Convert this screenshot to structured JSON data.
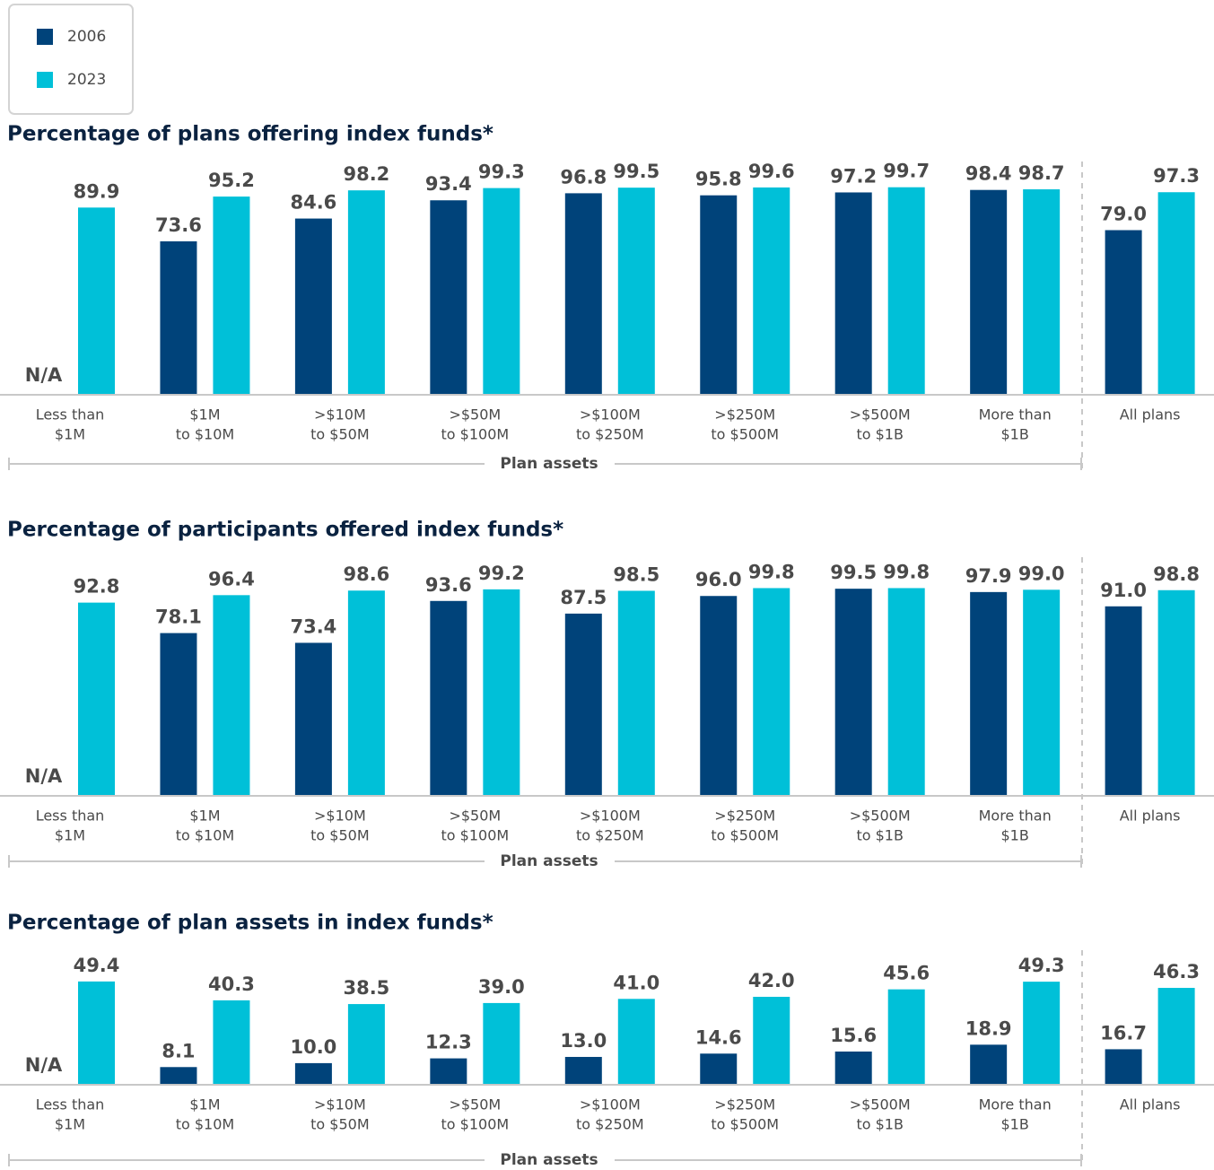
{
  "chart_data": [
    {
      "type": "bar",
      "title": "Percentage of plans offering index funds*",
      "axis_label": "Plan assets",
      "categories": [
        [
          "Less than",
          "$1M"
        ],
        [
          "$1M",
          "to $10M"
        ],
        [
          ">$10M",
          "to $50M"
        ],
        [
          ">$50M",
          "to $100M"
        ],
        [
          ">$100M",
          "to $250M"
        ],
        [
          ">$250M",
          "to $500M"
        ],
        [
          ">$500M",
          "to $1B"
        ],
        [
          "More than",
          "$1B"
        ],
        [
          "All plans"
        ]
      ],
      "ylim": [
        0,
        100
      ],
      "series": [
        {
          "name": "2006",
          "color": "#00437a",
          "values": [
            null,
            73.6,
            84.6,
            93.4,
            96.8,
            95.8,
            97.2,
            98.4,
            79.0
          ],
          "value_labels": [
            "N/A",
            "73.6",
            "84.6",
            "93.4",
            "96.8",
            "95.8",
            "97.2",
            "98.4",
            "79.0"
          ]
        },
        {
          "name": "2023",
          "color": "#00c0d8",
          "values": [
            89.9,
            95.2,
            98.2,
            99.3,
            99.5,
            99.6,
            99.7,
            98.7,
            97.3
          ],
          "value_labels": [
            "89.9",
            "95.2",
            "98.2",
            "99.3",
            "99.5",
            "99.6",
            "99.7",
            "98.7",
            "97.3"
          ]
        }
      ]
    },
    {
      "type": "bar",
      "title": "Percentage of participants offered index funds*",
      "axis_label": "Plan assets",
      "categories": [
        [
          "Less than",
          "$1M"
        ],
        [
          "$1M",
          "to $10M"
        ],
        [
          ">$10M",
          "to $50M"
        ],
        [
          ">$50M",
          "to $100M"
        ],
        [
          ">$100M",
          "to $250M"
        ],
        [
          ">$250M",
          "to $500M"
        ],
        [
          ">$500M",
          "to $1B"
        ],
        [
          "More than",
          "$1B"
        ],
        [
          "All plans"
        ]
      ],
      "ylim": [
        0,
        100
      ],
      "series": [
        {
          "color": "#00437a",
          "values": [
            null,
            78.1,
            73.4,
            93.6,
            87.5,
            96.0,
            99.5,
            97.9,
            91.0
          ],
          "value_labels": [
            "N/A",
            "78.1",
            "73.4",
            "93.6",
            "87.5",
            "96.0",
            "99.5",
            "97.9",
            "91.0"
          ]
        },
        {
          "color": "#00c0d8",
          "values": [
            92.8,
            96.4,
            98.6,
            99.2,
            98.5,
            99.8,
            99.8,
            99.0,
            98.8
          ],
          "value_labels": [
            "92.8",
            "96.4",
            "98.6",
            "99.2",
            "98.5",
            "99.8",
            "99.8",
            "99.0",
            "98.8"
          ]
        }
      ]
    },
    {
      "type": "bar",
      "title": "Percentage of plan assets in index funds*",
      "axis_label": "Plan assets",
      "categories": [
        [
          "Less than",
          "$1M"
        ],
        [
          "$1M",
          "to $10M"
        ],
        [
          ">$10M",
          "to $50M"
        ],
        [
          ">$50M",
          "to $100M"
        ],
        [
          ">$100M",
          "to $250M"
        ],
        [
          ">$250M",
          "to $500M"
        ],
        [
          ">$500M",
          "to $1B"
        ],
        [
          "More than",
          "$1B"
        ],
        [
          "All plans"
        ]
      ],
      "ylim": [
        0,
        50
      ],
      "series": [
        {
          "color": "#00437a",
          "values": [
            null,
            8.1,
            10.0,
            12.3,
            13.0,
            14.6,
            15.6,
            18.9,
            16.7
          ],
          "value_labels": [
            "N/A",
            "8.1",
            "10.0",
            "12.3",
            "13.0",
            "14.6",
            "15.6",
            "18.9",
            "16.7"
          ]
        },
        {
          "color": "#00c0d8",
          "values": [
            49.4,
            40.3,
            38.5,
            39.0,
            41.0,
            42.0,
            45.6,
            49.3,
            46.3
          ],
          "value_labels": [
            "49.4",
            "40.3",
            "38.5",
            "39.0",
            "41.0",
            "42.0",
            "45.6",
            "49.3",
            "46.3"
          ]
        }
      ]
    }
  ]
}
